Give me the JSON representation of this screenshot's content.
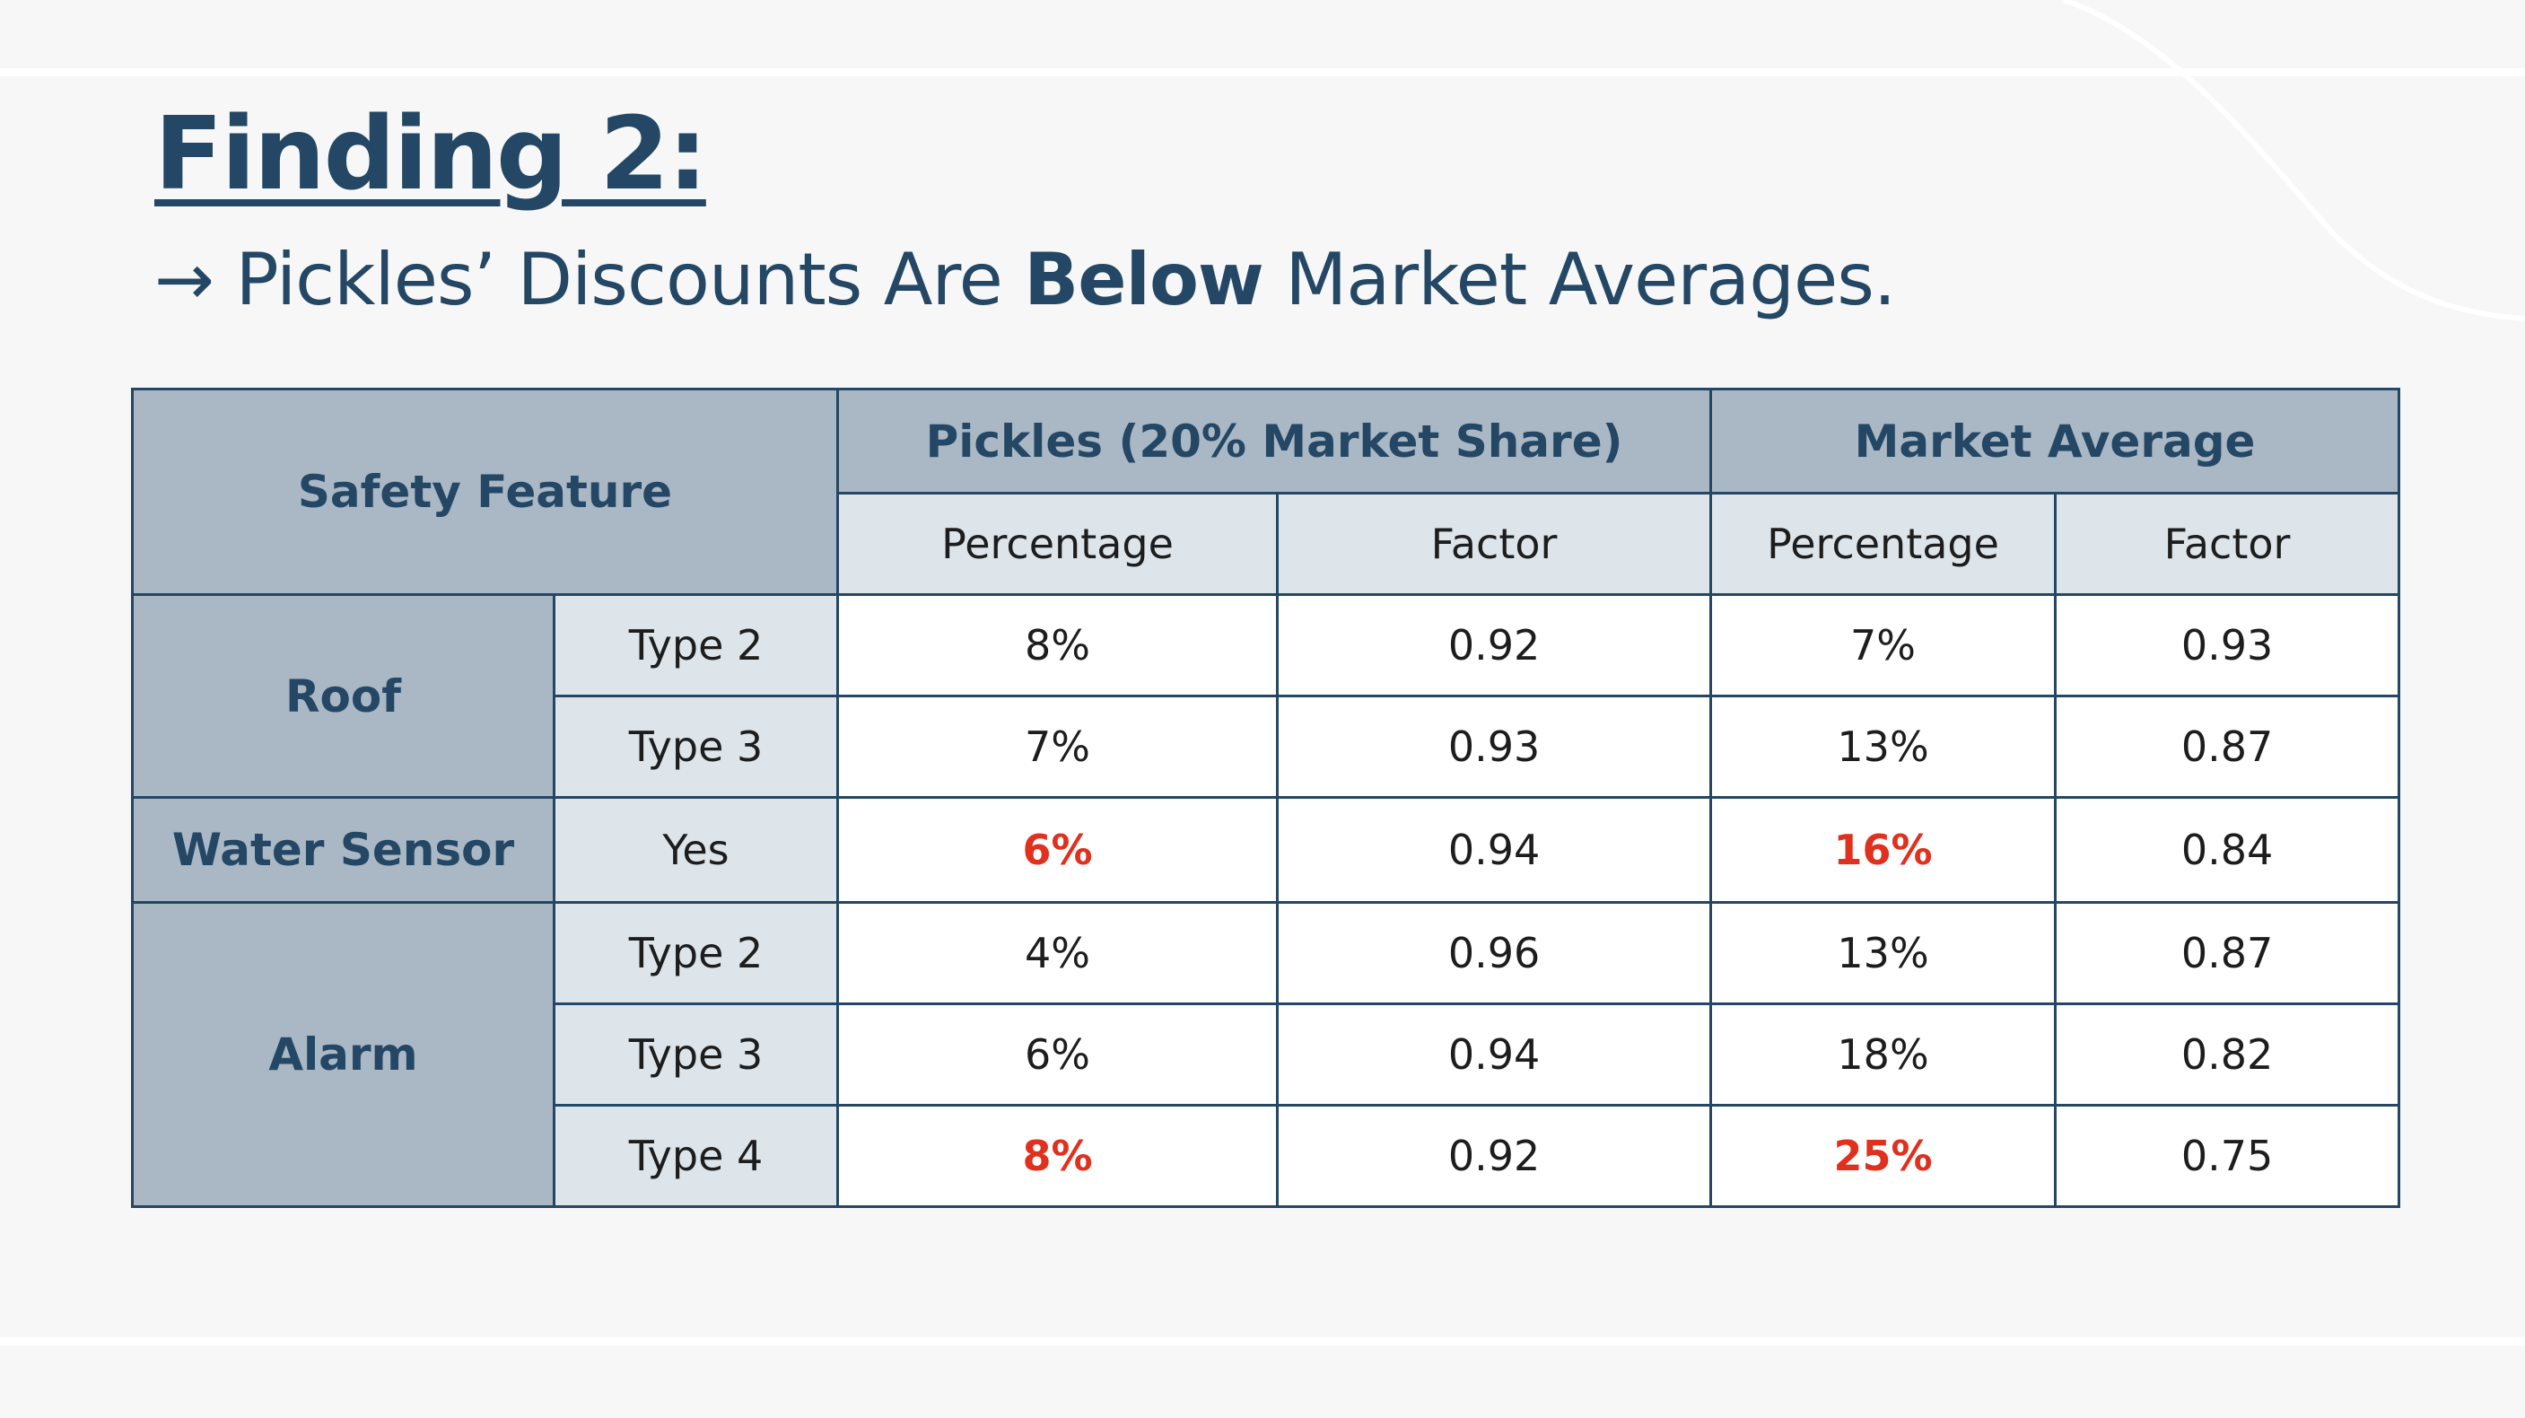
{
  "slide": {
    "title": "Finding 2:",
    "subtitle_prefix": "→ Pickles’ Discounts Are ",
    "subtitle_emphasis": "Below",
    "subtitle_suffix": " Market Averages."
  },
  "table": {
    "header": {
      "safety_feature": "Safety Feature",
      "pickles": "Pickles (20% Market Share)",
      "market_average": "Market Average",
      "percentage": "Percentage",
      "factor": "Factor"
    },
    "groups": [
      {
        "name": "Roof",
        "rows": [
          {
            "type": "Type 2",
            "pickles_pct": "8%",
            "pickles_factor": "0.92",
            "market_pct": "7%",
            "market_factor": "0.93"
          },
          {
            "type": "Type 3",
            "pickles_pct": "7%",
            "pickles_factor": "0.93",
            "market_pct": "13%",
            "market_factor": "0.87"
          }
        ]
      },
      {
        "name": "Water Sensor",
        "rows": [
          {
            "type": "Yes",
            "pickles_pct": "6%",
            "pickles_factor": "0.94",
            "market_pct": "16%",
            "market_factor": "0.84"
          }
        ]
      },
      {
        "name": "Alarm",
        "rows": [
          {
            "type": "Type 2",
            "pickles_pct": "4%",
            "pickles_factor": "0.96",
            "market_pct": "13%",
            "market_factor": "0.87"
          },
          {
            "type": "Type 3",
            "pickles_pct": "6%",
            "pickles_factor": "0.94",
            "market_pct": "18%",
            "market_factor": "0.82"
          },
          {
            "type": "Type 4",
            "pickles_pct": "8%",
            "pickles_factor": "0.92",
            "market_pct": "25%",
            "market_factor": "0.75"
          }
        ]
      }
    ]
  },
  "colors": {
    "navy": "#234764",
    "header_bg": "#aab7c4",
    "subheader_bg": "#dde5eb",
    "highlight_red": "#e0301e",
    "background": "#f7f7f7"
  }
}
